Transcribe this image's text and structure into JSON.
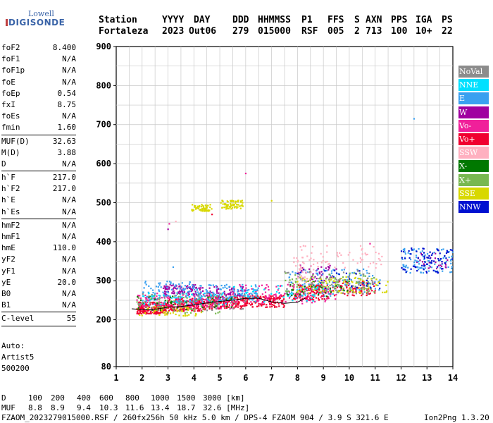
{
  "logo": {
    "top": "Lowell",
    "bottom": "DIGISONDE"
  },
  "header": {
    "labels": [
      "Station",
      "YYYY",
      "DAY",
      "DDD",
      "HHMMSS",
      "P1",
      "FFS",
      "S",
      "AXN",
      "PPS",
      "IGA",
      "PS"
    ],
    "values": [
      "Fortaleza",
      "2023",
      "Out06",
      "279",
      "015000",
      "RSF",
      "005",
      "2",
      "713",
      "100",
      "10+",
      "22"
    ]
  },
  "params": [
    [
      [
        "foF2",
        "8.400"
      ],
      [
        "foF1",
        "N/A"
      ],
      [
        "foF1p",
        "N/A"
      ],
      [
        "foE",
        "N/A"
      ],
      [
        "foEp",
        "0.54"
      ],
      [
        "fxI",
        "8.75"
      ],
      [
        "foEs",
        "N/A"
      ],
      [
        "fmin",
        "1.60"
      ]
    ],
    [
      [
        "MUF(D)",
        "32.63"
      ],
      [
        "M(D)",
        "3.88"
      ],
      [
        "D",
        "N/A"
      ]
    ],
    [
      [
        "h`F",
        "217.0"
      ],
      [
        "h`F2",
        "217.0"
      ],
      [
        "h`E",
        "N/A"
      ],
      [
        "h`Es",
        "N/A"
      ]
    ],
    [
      [
        "hmF2",
        "N/A"
      ],
      [
        "hmF1",
        "N/A"
      ],
      [
        "hmE",
        "110.0"
      ],
      [
        "yF2",
        "N/A"
      ],
      [
        "yF1",
        "N/A"
      ],
      [
        "yE",
        "20.0"
      ],
      [
        "B0",
        "N/A"
      ],
      [
        "B1",
        "N/A"
      ]
    ],
    [
      [
        "C-level",
        "55"
      ]
    ]
  ],
  "auto": {
    "label": "Auto:",
    "name": "Artist5",
    "code": "500200"
  },
  "legend": [
    {
      "label": "NoVal",
      "color": "#8c8c8c"
    },
    {
      "label": "NNE",
      "color": "#00e0ff"
    },
    {
      "label": "E",
      "color": "#3aa0f0"
    },
    {
      "label": "W",
      "color": "#a000a0"
    },
    {
      "label": "Vo-",
      "color": "#f0209a"
    },
    {
      "label": "Vo+",
      "color": "#f00030"
    },
    {
      "label": "SSW",
      "color": "#ffb0c0"
    },
    {
      "label": "X-",
      "color": "#007800"
    },
    {
      "label": "X+",
      "color": "#78b850"
    },
    {
      "label": "SSE",
      "color": "#d8d800"
    },
    {
      "label": "NNW",
      "color": "#0010d0"
    }
  ],
  "footer": {
    "d_label": "D",
    "d_values": [
      "100",
      "200",
      "400",
      "600",
      "800",
      "1000",
      "1500",
      "3000 [km]"
    ],
    "muf_label": "MUF",
    "muf_values": [
      "8.8",
      "8.9",
      "9.4",
      "10.3",
      "11.6",
      "13.4",
      "18.7",
      "32.6 [MHz]"
    ],
    "info": "FZAOM_2023279015000.RSF / 260fx256h 50 kHz 5.0 km / DPS-4 FZAOM 904 / 3.9 S 321.6 E",
    "version": "Ion2Png 1.3.20"
  },
  "chart_data": {
    "type": "scatter",
    "xlim": [
      1,
      14
    ],
    "ylim": [
      80,
      900
    ],
    "x_ticks": [
      1,
      2,
      3,
      4,
      5,
      6,
      7,
      8,
      9,
      10,
      11,
      12,
      13,
      14
    ],
    "y_ticks": [
      80,
      200,
      300,
      400,
      500,
      600,
      700,
      800,
      900
    ],
    "y_grid": [
      200,
      250,
      300,
      350,
      400,
      450,
      500,
      550,
      600,
      650,
      700,
      750,
      800,
      850,
      900
    ],
    "x_grid_step": 0.5,
    "clusters": [
      {
        "x": [
          1.8,
          3.0
        ],
        "y": [
          215,
          245
        ],
        "color": "#f00030",
        "n": 210
      },
      {
        "x": [
          3.0,
          4.5
        ],
        "y": [
          222,
          255
        ],
        "color": "#f00030",
        "n": 190
      },
      {
        "x": [
          4.5,
          6.0
        ],
        "y": [
          228,
          260
        ],
        "color": "#f00030",
        "n": 170
      },
      {
        "x": [
          6.0,
          7.5
        ],
        "y": [
          232,
          262
        ],
        "color": "#f00030",
        "n": 130
      },
      {
        "x": [
          7.8,
          9.2
        ],
        "y": [
          250,
          290
        ],
        "color": "#f00030",
        "n": 130
      },
      {
        "x": [
          9.2,
          11.0
        ],
        "y": [
          262,
          300
        ],
        "color": "#f00030",
        "n": 90
      },
      {
        "x": [
          1.8,
          5.5
        ],
        "y": [
          228,
          268
        ],
        "color": "#f0209a",
        "n": 170
      },
      {
        "x": [
          5.5,
          9.5
        ],
        "y": [
          240,
          290
        ],
        "color": "#f0209a",
        "n": 110
      },
      {
        "x": [
          2.8,
          4.2
        ],
        "y": [
          262,
          290
        ],
        "color": "#a000a0",
        "n": 90
      },
      {
        "x": [
          4.2,
          6.0
        ],
        "y": [
          258,
          285
        ],
        "color": "#a000a0",
        "n": 60
      },
      {
        "x": [
          8.0,
          9.5
        ],
        "y": [
          290,
          340
        ],
        "color": "#a000a0",
        "n": 50
      },
      {
        "x": [
          12.5,
          13.8
        ],
        "y": [
          330,
          380
        ],
        "color": "#a000a0",
        "n": 25
      },
      {
        "x": [
          2.0,
          4.0
        ],
        "y": [
          245,
          300
        ],
        "color": "#3aa0f0",
        "n": 90
      },
      {
        "x": [
          4.0,
          6.5
        ],
        "y": [
          250,
          290
        ],
        "color": "#3aa0f0",
        "n": 110
      },
      {
        "x": [
          7.5,
          9.5
        ],
        "y": [
          260,
          330
        ],
        "color": "#3aa0f0",
        "n": 70
      },
      {
        "x": [
          9.5,
          11.2
        ],
        "y": [
          270,
          330
        ],
        "color": "#3aa0f0",
        "n": 55
      },
      {
        "x": [
          12.0,
          14.0
        ],
        "y": [
          320,
          385
        ],
        "color": "#3aa0f0",
        "n": 90
      },
      {
        "x": [
          2.0,
          5.5
        ],
        "y": [
          238,
          270
        ],
        "color": "#00e0ff",
        "n": 70
      },
      {
        "x": [
          5.5,
          9.0
        ],
        "y": [
          245,
          290
        ],
        "color": "#00e0ff",
        "n": 50
      },
      {
        "x": [
          1.8,
          4.5
        ],
        "y": [
          210,
          235
        ],
        "color": "#d8d800",
        "n": 50
      },
      {
        "x": [
          8.0,
          11.5
        ],
        "y": [
          268,
          310
        ],
        "color": "#d8d800",
        "n": 90
      },
      {
        "x": [
          3.9,
          4.7
        ],
        "y": [
          478,
          496
        ],
        "color": "#d8d800",
        "n": 55
      },
      {
        "x": [
          5.0,
          5.9
        ],
        "y": [
          484,
          506
        ],
        "color": "#d8d800",
        "n": 70
      },
      {
        "x": [
          1.8,
          5.0
        ],
        "y": [
          215,
          262
        ],
        "color": "#78b850",
        "n": 60
      },
      {
        "x": [
          7.5,
          11.0
        ],
        "y": [
          270,
          320
        ],
        "color": "#78b850",
        "n": 80
      },
      {
        "x": [
          1.8,
          5.5
        ],
        "y": [
          225,
          260
        ],
        "color": "#007800",
        "n": 35
      },
      {
        "x": [
          7.6,
          10.0
        ],
        "y": [
          260,
          300
        ],
        "color": "#007800",
        "n": 30
      },
      {
        "x": [
          7.8,
          11.3
        ],
        "y": [
          330,
          390
        ],
        "color": "#ffb0c0",
        "n": 60
      },
      {
        "x": [
          7.8,
          9.0
        ],
        "y": [
          290,
          360
        ],
        "color": "#ffb0c0",
        "n": 35
      },
      {
        "x": [
          1.8,
          6.0
        ],
        "y": [
          222,
          268
        ],
        "color": "#8c8c8c",
        "n": 60
      },
      {
        "x": [
          7.5,
          11.0
        ],
        "y": [
          265,
          330
        ],
        "color": "#8c8c8c",
        "n": 55
      },
      {
        "x": [
          12.0,
          14.0
        ],
        "y": [
          320,
          385
        ],
        "color": "#0010d0",
        "n": 75
      },
      {
        "x": [
          8.0,
          11.2
        ],
        "y": [
          275,
          330
        ],
        "color": "#0010d0",
        "n": 25
      }
    ],
    "isolated_points": [
      {
        "x": 3.0,
        "y": 432,
        "color": "#a000a0"
      },
      {
        "x": 3.05,
        "y": 446,
        "color": "#f0209a"
      },
      {
        "x": 3.3,
        "y": 452,
        "color": "#ffb0c0"
      },
      {
        "x": 4.7,
        "y": 470,
        "color": "#f00030"
      },
      {
        "x": 6.0,
        "y": 575,
        "color": "#f0209a"
      },
      {
        "x": 7.0,
        "y": 505,
        "color": "#d8d800"
      },
      {
        "x": 12.5,
        "y": 715,
        "color": "#3aa0f0"
      },
      {
        "x": 10.8,
        "y": 395,
        "color": "#f0209a"
      },
      {
        "x": 3.2,
        "y": 335,
        "color": "#3aa0f0"
      }
    ],
    "trace": {
      "color": "#000000",
      "x": [
        1.6,
        2.0,
        2.5,
        3.0,
        3.5,
        4.0,
        4.5,
        5.0,
        5.5,
        6.0,
        6.5,
        7.0,
        7.5,
        8.0,
        8.3
      ],
      "y": [
        228,
        226,
        227,
        232,
        234,
        238,
        243,
        247,
        250,
        255,
        255,
        246,
        242,
        245,
        255
      ]
    }
  }
}
